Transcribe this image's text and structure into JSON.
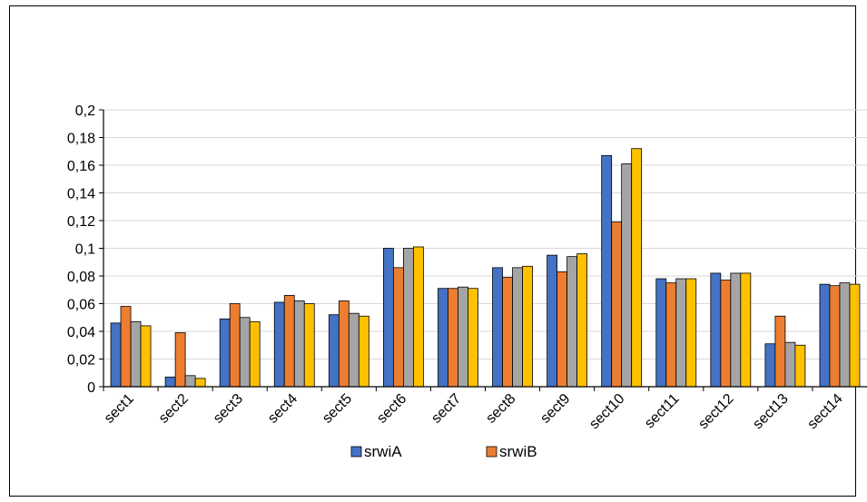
{
  "chart_data": {
    "type": "bar",
    "title": "",
    "xlabel": "",
    "ylabel": "",
    "categories": [
      "sect1",
      "sect2",
      "sect3",
      "sect4",
      "sect5",
      "sect6",
      "sect7",
      "sect8",
      "sect9",
      "sect10",
      "sect11",
      "sect12",
      "sect13",
      "sect14"
    ],
    "ylim": [
      0,
      0.2
    ],
    "yticks": [
      "0",
      "0,02",
      "0,04",
      "0,06",
      "0,08",
      "0,1",
      "0,12",
      "0,14",
      "0,16",
      "0,18",
      "0,2"
    ],
    "grid": true,
    "legend": "bottom",
    "series": [
      {
        "name": "srwiA",
        "color": "#4472c4",
        "values": [
          0.046,
          0.007,
          0.049,
          0.061,
          0.052,
          0.1,
          0.071,
          0.086,
          0.095,
          0.167,
          0.078,
          0.082,
          0.031,
          0.074
        ]
      },
      {
        "name": "srwiB",
        "color": "#ed7d31",
        "values": [
          0.058,
          0.039,
          0.06,
          0.066,
          0.062,
          0.086,
          0.071,
          0.079,
          0.083,
          0.119,
          0.075,
          0.077,
          0.051,
          0.073
        ]
      },
      {
        "color": "#a5a5a5",
        "values": [
          0.047,
          0.008,
          0.05,
          0.062,
          0.053,
          0.1,
          0.072,
          0.086,
          0.094,
          0.161,
          0.078,
          0.082,
          0.032,
          0.075
        ]
      },
      {
        "color": "#ffc000",
        "values": [
          0.044,
          0.006,
          0.047,
          0.06,
          0.051,
          0.101,
          0.071,
          0.087,
          0.096,
          0.172,
          0.078,
          0.082,
          0.03,
          0.074
        ]
      }
    ],
    "legend_entries": [
      {
        "label": "srwiA",
        "color": "#4472c4"
      },
      {
        "label": "srwiB",
        "color": "#ed7d31"
      }
    ]
  }
}
